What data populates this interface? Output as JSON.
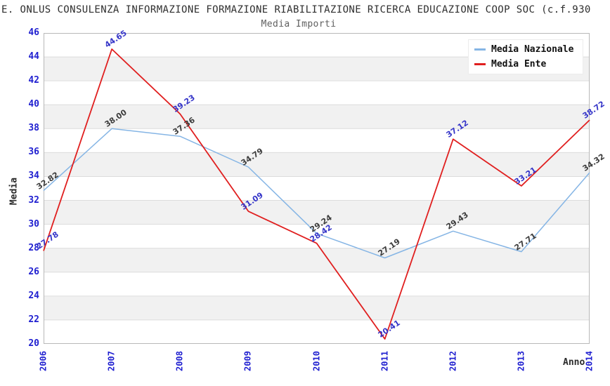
{
  "header": {
    "title": "E. ONLUS CONSULENZA INFORMAZIONE FORMAZIONE RIABILITAZIONE RICERCA EDUCAZIONE COOP SOC (c.f.930",
    "subtitle": "Media Importi"
  },
  "chart_data": {
    "type": "line",
    "x": [
      2006,
      2007,
      2008,
      2009,
      2010,
      2011,
      2012,
      2013,
      2014
    ],
    "series": [
      {
        "name": "Media Nazionale",
        "color": "#85b5e5",
        "label_color": "#3c3c3c",
        "values": [
          32.82,
          38.0,
          37.36,
          34.79,
          29.24,
          27.19,
          29.43,
          27.71,
          34.32
        ],
        "labels": [
          "32.82",
          "38.00",
          "37.36",
          "34.79",
          "29.24",
          "27.19",
          "29.43",
          "27.71",
          "34.32"
        ]
      },
      {
        "name": "Media Ente",
        "color": "#e01f1f",
        "label_color": "#3434c8",
        "values": [
          27.78,
          44.65,
          39.23,
          31.09,
          28.42,
          20.41,
          37.12,
          33.21,
          38.72
        ],
        "labels": [
          "27.78",
          "44.65",
          "39.23",
          "31.09",
          "28.42",
          "20.41",
          "37.12",
          "33.21",
          "38.72"
        ]
      }
    ],
    "xlabel": "Anno",
    "ylabel": "Media",
    "ylim": [
      20,
      46
    ],
    "ytick_step": 2,
    "grid": "horizontal-bands",
    "legend_position": "top-right",
    "style": {
      "tick_color": "#2020d0",
      "band_color": "#f1f1f1",
      "grid_color": "#dcdcdc",
      "border_color": "#b8b8b8"
    }
  }
}
